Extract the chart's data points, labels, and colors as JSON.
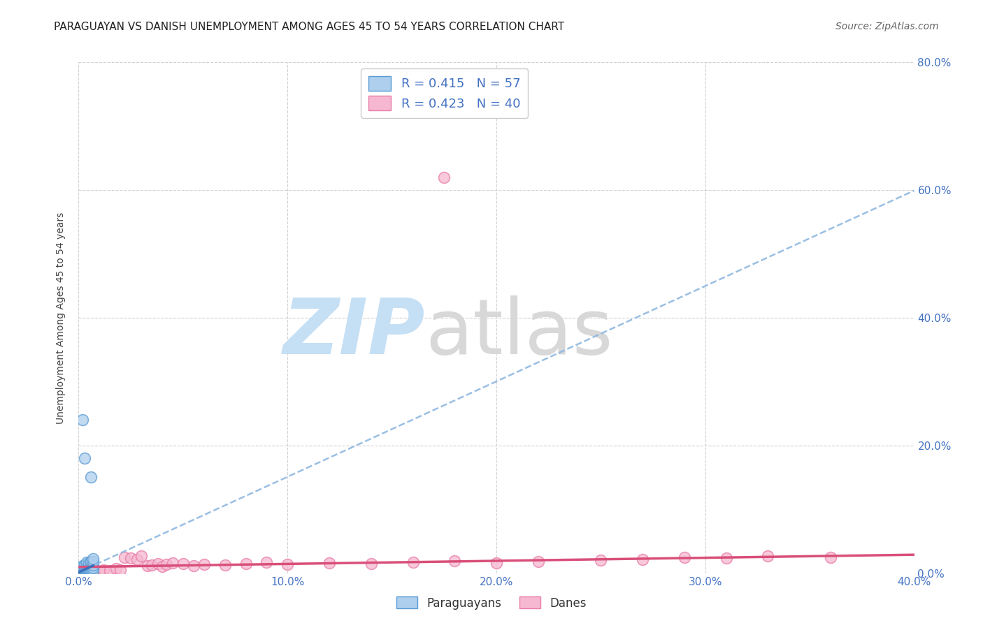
{
  "title": "PARAGUAYAN VS DANISH UNEMPLOYMENT AMONG AGES 45 TO 54 YEARS CORRELATION CHART",
  "source": "Source: ZipAtlas.com",
  "ylabel_label": "Unemployment Among Ages 45 to 54 years",
  "xlim": [
    0.0,
    0.4
  ],
  "ylim": [
    0.0,
    0.8
  ],
  "paraguayan_scatter": [
    [
      0.0,
      0.0
    ],
    [
      0.0,
      0.001
    ],
    [
      0.0,
      0.002
    ],
    [
      0.0,
      0.003
    ],
    [
      0.001,
      0.0
    ],
    [
      0.001,
      0.001
    ],
    [
      0.001,
      0.002
    ],
    [
      0.001,
      0.003
    ],
    [
      0.001,
      0.004
    ],
    [
      0.001,
      0.005
    ],
    [
      0.001,
      0.006
    ],
    [
      0.001,
      0.008
    ],
    [
      0.002,
      0.0
    ],
    [
      0.002,
      0.001
    ],
    [
      0.002,
      0.002
    ],
    [
      0.002,
      0.003
    ],
    [
      0.002,
      0.004
    ],
    [
      0.002,
      0.005
    ],
    [
      0.002,
      0.007
    ],
    [
      0.002,
      0.009
    ],
    [
      0.002,
      0.012
    ],
    [
      0.002,
      0.24
    ],
    [
      0.003,
      0.0
    ],
    [
      0.003,
      0.001
    ],
    [
      0.003,
      0.002
    ],
    [
      0.003,
      0.003
    ],
    [
      0.003,
      0.004
    ],
    [
      0.003,
      0.005
    ],
    [
      0.003,
      0.007
    ],
    [
      0.003,
      0.01
    ],
    [
      0.003,
      0.013
    ],
    [
      0.003,
      0.18
    ],
    [
      0.004,
      0.001
    ],
    [
      0.004,
      0.002
    ],
    [
      0.004,
      0.003
    ],
    [
      0.004,
      0.005
    ],
    [
      0.004,
      0.007
    ],
    [
      0.004,
      0.01
    ],
    [
      0.004,
      0.014
    ],
    [
      0.004,
      0.017
    ],
    [
      0.005,
      0.002
    ],
    [
      0.005,
      0.004
    ],
    [
      0.005,
      0.006
    ],
    [
      0.005,
      0.009
    ],
    [
      0.005,
      0.013
    ],
    [
      0.005,
      0.016
    ],
    [
      0.006,
      0.003
    ],
    [
      0.006,
      0.006
    ],
    [
      0.006,
      0.01
    ],
    [
      0.006,
      0.014
    ],
    [
      0.006,
      0.018
    ],
    [
      0.006,
      0.15
    ],
    [
      0.007,
      0.004
    ],
    [
      0.007,
      0.008
    ],
    [
      0.007,
      0.013
    ],
    [
      0.007,
      0.018
    ],
    [
      0.007,
      0.023
    ]
  ],
  "danish_scatter": [
    [
      0.003,
      0.002
    ],
    [
      0.004,
      0.001
    ],
    [
      0.005,
      0.003
    ],
    [
      0.006,
      0.002
    ],
    [
      0.008,
      0.004
    ],
    [
      0.01,
      0.003
    ],
    [
      0.012,
      0.005
    ],
    [
      0.015,
      0.004
    ],
    [
      0.018,
      0.007
    ],
    [
      0.02,
      0.005
    ],
    [
      0.022,
      0.025
    ],
    [
      0.025,
      0.024
    ],
    [
      0.028,
      0.022
    ],
    [
      0.03,
      0.027
    ],
    [
      0.033,
      0.012
    ],
    [
      0.035,
      0.013
    ],
    [
      0.038,
      0.015
    ],
    [
      0.04,
      0.011
    ],
    [
      0.042,
      0.014
    ],
    [
      0.045,
      0.016
    ],
    [
      0.05,
      0.015
    ],
    [
      0.055,
      0.012
    ],
    [
      0.06,
      0.014
    ],
    [
      0.07,
      0.013
    ],
    [
      0.08,
      0.015
    ],
    [
      0.09,
      0.017
    ],
    [
      0.1,
      0.014
    ],
    [
      0.12,
      0.016
    ],
    [
      0.14,
      0.015
    ],
    [
      0.16,
      0.017
    ],
    [
      0.18,
      0.019
    ],
    [
      0.2,
      0.016
    ],
    [
      0.22,
      0.018
    ],
    [
      0.25,
      0.02
    ],
    [
      0.27,
      0.022
    ],
    [
      0.29,
      0.025
    ],
    [
      0.31,
      0.024
    ],
    [
      0.33,
      0.027
    ],
    [
      0.36,
      0.025
    ],
    [
      0.175,
      0.62
    ]
  ],
  "paraguayan_fill_color": "#aecfed",
  "paraguayan_edge_color": "#5b9bd5",
  "danish_fill_color": "#f5b8d0",
  "danish_edge_color": "#e87da8",
  "trend_par_color": "#3a6fba",
  "trend_par_dash_color": "#8fb8e0",
  "trend_dan_color": "#d94f7a",
  "background_color": "#ffffff",
  "grid_color": "#cccccc",
  "right_tick_color": "#4472c4",
  "title_fontsize": 11,
  "axis_label_fontsize": 10,
  "tick_fontsize": 11,
  "source_fontsize": 10
}
